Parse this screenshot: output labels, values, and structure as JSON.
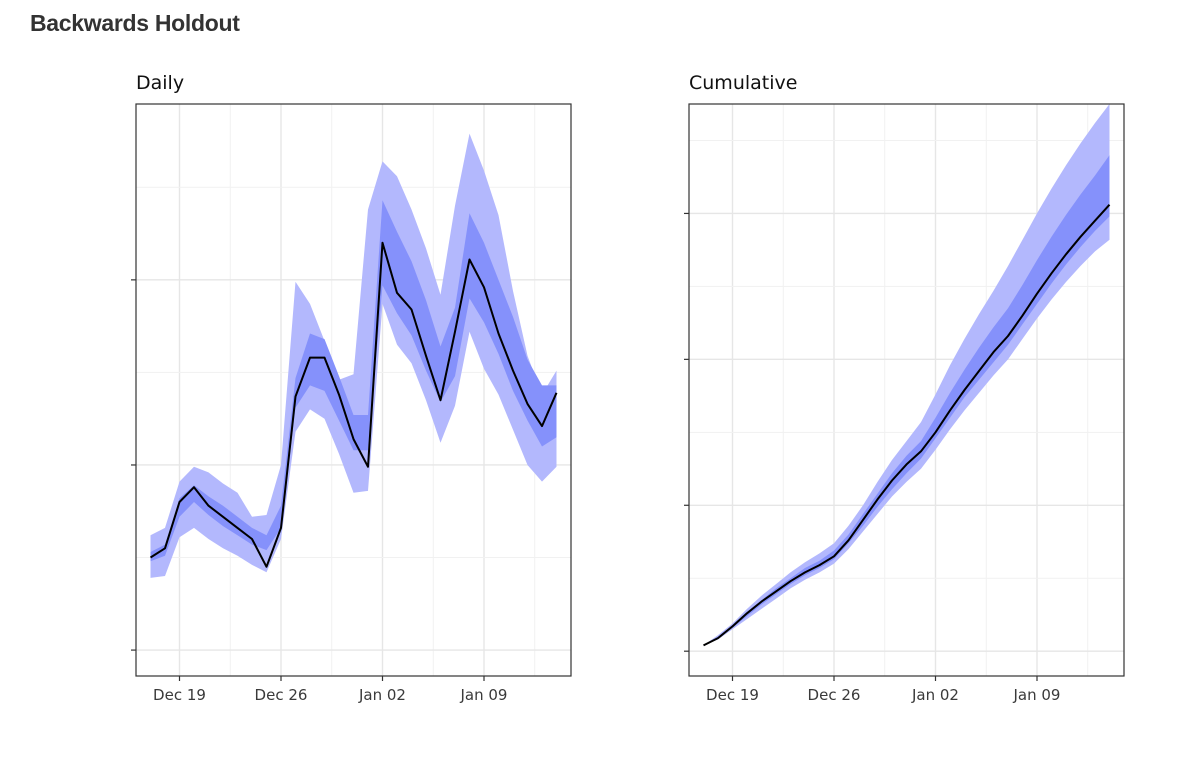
{
  "page": {
    "title": "Backwards Holdout"
  },
  "colors": {
    "band_outer": "#b3b8fd",
    "band_inner": "#8591fb",
    "median_line": "#000000",
    "grid_major": "#e6e6e6",
    "grid_minor": "#f1f1f1",
    "panel_border": "#333333"
  },
  "x_axis": {
    "ticks": [
      "Dec 19",
      "Dec 26",
      "Jan 02",
      "Jan 09"
    ]
  },
  "chart_data": [
    {
      "type": "line",
      "title": "Daily",
      "xlabel": "",
      "ylabel": "",
      "x_type": "date",
      "x_ticks": [
        "Dec 19",
        "Dec 26",
        "Jan 02",
        "Jan 09"
      ],
      "y_tick_labels_visible": false,
      "grid": true,
      "legend": "none",
      "xlim": [
        "2020-12-16",
        "2021-01-15"
      ],
      "ylim": [
        -0.14,
        2.95
      ],
      "x": [
        "2020-12-17",
        "2020-12-18",
        "2020-12-19",
        "2020-12-20",
        "2020-12-21",
        "2020-12-22",
        "2020-12-23",
        "2020-12-24",
        "2020-12-25",
        "2020-12-26",
        "2020-12-27",
        "2020-12-28",
        "2020-12-29",
        "2020-12-30",
        "2020-12-31",
        "2021-01-01",
        "2021-01-02",
        "2021-01-03",
        "2021-01-04",
        "2021-01-05",
        "2021-01-06",
        "2021-01-07",
        "2021-01-08",
        "2021-01-09",
        "2021-01-10",
        "2021-01-11",
        "2021-01-12",
        "2021-01-13",
        "2021-01-14"
      ],
      "series": [
        {
          "role": "median",
          "values": [
            0.5,
            0.55,
            0.8,
            0.88,
            0.78,
            0.72,
            0.66,
            0.6,
            0.45,
            0.66,
            1.37,
            1.58,
            1.58,
            1.38,
            1.14,
            0.99,
            2.2,
            1.93,
            1.84,
            1.59,
            1.35,
            1.72,
            2.11,
            1.96,
            1.71,
            1.51,
            1.33,
            1.21,
            1.39
          ]
        },
        {
          "role": "inner_band_low",
          "values": [
            0.48,
            0.51,
            0.72,
            0.8,
            0.73,
            0.67,
            0.62,
            0.57,
            0.54,
            0.66,
            1.31,
            1.43,
            1.4,
            1.24,
            1.08,
            1.08,
            1.97,
            1.82,
            1.7,
            1.51,
            1.34,
            1.48,
            1.9,
            1.77,
            1.6,
            1.4,
            1.24,
            1.1,
            1.15
          ]
        },
        {
          "role": "inner_band_high",
          "values": [
            0.53,
            0.57,
            0.82,
            0.89,
            0.83,
            0.78,
            0.72,
            0.66,
            0.62,
            0.78,
            1.47,
            1.71,
            1.68,
            1.48,
            1.27,
            1.27,
            2.43,
            2.26,
            2.1,
            1.89,
            1.64,
            1.85,
            2.36,
            2.2,
            2.0,
            1.8,
            1.57,
            1.43,
            1.43
          ]
        },
        {
          "role": "outer_band_low",
          "values": [
            0.39,
            0.4,
            0.61,
            0.66,
            0.6,
            0.55,
            0.51,
            0.46,
            0.42,
            0.6,
            1.18,
            1.3,
            1.25,
            1.06,
            0.85,
            0.86,
            1.87,
            1.65,
            1.55,
            1.35,
            1.12,
            1.32,
            1.72,
            1.52,
            1.38,
            1.19,
            1.0,
            0.91,
            0.99
          ]
        },
        {
          "role": "outer_band_high",
          "values": [
            0.62,
            0.66,
            0.91,
            0.99,
            0.96,
            0.9,
            0.85,
            0.72,
            0.73,
            1.0,
            1.99,
            1.87,
            1.67,
            1.46,
            1.49,
            2.38,
            2.64,
            2.56,
            2.38,
            2.17,
            1.92,
            2.4,
            2.79,
            2.59,
            2.35,
            1.94,
            1.59,
            1.38,
            1.51
          ]
        }
      ]
    },
    {
      "type": "line",
      "title": "Cumulative",
      "xlabel": "",
      "ylabel": "",
      "x_type": "date",
      "x_ticks": [
        "Dec 19",
        "Dec 26",
        "Jan 02",
        "Jan 09"
      ],
      "y_tick_labels_visible": false,
      "grid": true,
      "legend": "none",
      "xlim": [
        "2020-12-16",
        "2021-01-15"
      ],
      "ylim": [
        -0.17,
        3.75
      ],
      "x": [
        "2020-12-17",
        "2020-12-18",
        "2020-12-19",
        "2020-12-20",
        "2020-12-21",
        "2020-12-22",
        "2020-12-23",
        "2020-12-24",
        "2020-12-25",
        "2020-12-26",
        "2020-12-27",
        "2020-12-28",
        "2020-12-29",
        "2020-12-30",
        "2020-12-31",
        "2021-01-01",
        "2021-01-02",
        "2021-01-03",
        "2021-01-04",
        "2021-01-05",
        "2021-01-06",
        "2021-01-07",
        "2021-01-08",
        "2021-01-09",
        "2021-01-10",
        "2021-01-11",
        "2021-01-12",
        "2021-01-13",
        "2021-01-14"
      ],
      "series": [
        {
          "role": "median",
          "values": [
            0.04,
            0.09,
            0.17,
            0.26,
            0.34,
            0.41,
            0.48,
            0.54,
            0.59,
            0.65,
            0.76,
            0.9,
            1.04,
            1.17,
            1.28,
            1.37,
            1.5,
            1.65,
            1.79,
            1.92,
            2.05,
            2.16,
            2.3,
            2.45,
            2.59,
            2.72,
            2.84,
            2.95,
            3.06
          ]
        },
        {
          "role": "inner_band_low",
          "values": [
            0.04,
            0.09,
            0.16,
            0.24,
            0.32,
            0.39,
            0.46,
            0.52,
            0.57,
            0.63,
            0.74,
            0.86,
            0.99,
            1.11,
            1.22,
            1.32,
            1.46,
            1.6,
            1.74,
            1.86,
            1.98,
            2.1,
            2.24,
            2.38,
            2.52,
            2.65,
            2.77,
            2.88,
            2.98
          ]
        },
        {
          "role": "inner_band_high",
          "values": [
            0.04,
            0.1,
            0.18,
            0.27,
            0.35,
            0.43,
            0.5,
            0.57,
            0.62,
            0.69,
            0.8,
            0.94,
            1.08,
            1.22,
            1.34,
            1.44,
            1.6,
            1.77,
            1.93,
            2.08,
            2.22,
            2.35,
            2.51,
            2.68,
            2.84,
            2.99,
            3.13,
            3.26,
            3.4
          ]
        },
        {
          "role": "outer_band_low",
          "values": [
            0.04,
            0.08,
            0.15,
            0.22,
            0.29,
            0.36,
            0.43,
            0.49,
            0.54,
            0.6,
            0.7,
            0.82,
            0.94,
            1.06,
            1.16,
            1.25,
            1.38,
            1.52,
            1.65,
            1.77,
            1.89,
            2.0,
            2.14,
            2.28,
            2.41,
            2.53,
            2.64,
            2.74,
            2.82
          ]
        },
        {
          "role": "outer_band_high",
          "values": [
            0.04,
            0.11,
            0.19,
            0.29,
            0.38,
            0.46,
            0.54,
            0.61,
            0.67,
            0.74,
            0.86,
            1.0,
            1.16,
            1.31,
            1.44,
            1.57,
            1.76,
            1.96,
            2.14,
            2.31,
            2.47,
            2.64,
            2.82,
            3.0,
            3.17,
            3.33,
            3.48,
            3.62,
            3.75
          ]
        }
      ]
    }
  ]
}
